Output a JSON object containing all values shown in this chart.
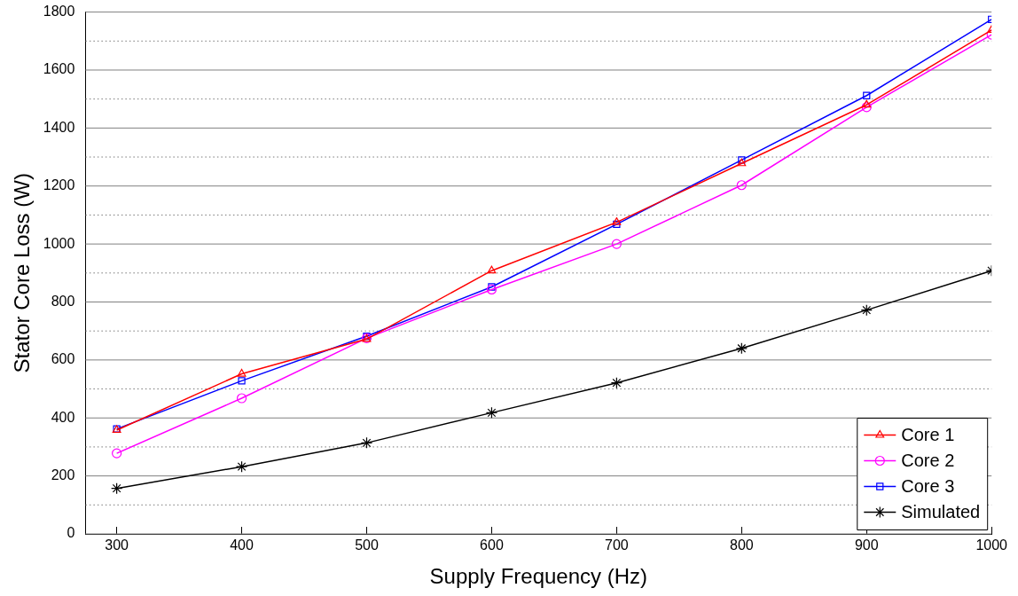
{
  "chart_data": {
    "type": "line",
    "xlabel": "Supply Frequency (Hz)",
    "ylabel": "Stator Core Loss (W)",
    "x": [
      300,
      400,
      500,
      600,
      700,
      800,
      900,
      1000
    ],
    "series": [
      {
        "name": "Core 1",
        "color": "#ff0000",
        "marker": "triangle",
        "values": [
          358,
          552,
          672,
          908,
          1075,
          1278,
          1480,
          1738
        ]
      },
      {
        "name": "Core 2",
        "color": "#ff00ff",
        "marker": "circle",
        "values": [
          278,
          468,
          675,
          843,
          1000,
          1203,
          1472,
          1722
        ]
      },
      {
        "name": "Core 3",
        "color": "#0000ff",
        "marker": "square",
        "values": [
          362,
          528,
          682,
          852,
          1068,
          1290,
          1512,
          1775
        ]
      },
      {
        "name": "Simulated",
        "color": "#000000",
        "marker": "cross",
        "values": [
          157,
          232,
          314,
          418,
          521,
          640,
          772,
          908
        ]
      }
    ],
    "xlim": [
      275,
      1000
    ],
    "xticks": [
      300,
      400,
      500,
      600,
      700,
      800,
      900,
      1000
    ],
    "ylim": [
      0,
      1800
    ],
    "yticks": [
      0,
      {
        "value": 100,
        "label": null
      },
      200,
      {
        "value": 300,
        "label": null
      },
      400,
      {
        "value": 500,
        "label": null
      },
      600,
      {
        "value": 700,
        "label": null
      },
      800,
      {
        "value": 900,
        "label": null
      },
      1000,
      {
        "value": 1100,
        "label": null
      },
      1200,
      {
        "value": 1300,
        "label": null
      },
      1400,
      {
        "value": 1500,
        "label": null
      },
      1600,
      {
        "value": 1700,
        "label": null
      },
      1800
    ],
    "grid": "y",
    "legend": "bottom right",
    "line_style": "solid"
  }
}
